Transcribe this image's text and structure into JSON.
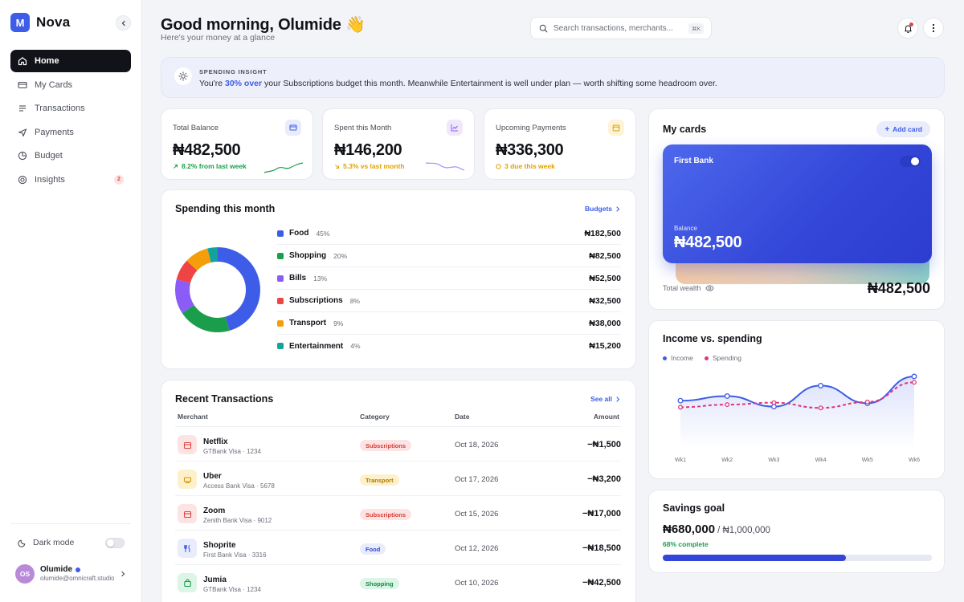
{
  "app": {
    "name": "Nova",
    "logo_letter": "M"
  },
  "nav": [
    {
      "label": "Home",
      "icon": "home-icon",
      "active": true
    },
    {
      "label": "My Cards",
      "icon": "card-icon"
    },
    {
      "label": "Transactions",
      "icon": "list-icon"
    },
    {
      "label": "Payments",
      "icon": "send-icon"
    },
    {
      "label": "Budget",
      "icon": "pie-icon"
    },
    {
      "label": "Insights",
      "icon": "target-icon",
      "badge": "2"
    }
  ],
  "sidebar": {
    "dark_mode_label": "Dark mode"
  },
  "user": {
    "initials": "OS",
    "name": "Olumide",
    "email": "olumide@omnicraft.studio"
  },
  "header": {
    "greeting": "Good morning, Olumide 👋",
    "subtitle": "Here's your money at a glance",
    "search_placeholder": "Search transactions, merchants...",
    "search_shortcut": "⌘K"
  },
  "insight": {
    "tag": "SPENDING INSIGHT",
    "text_before": "You're ",
    "highlight": "30% over",
    "text_after": " your Subscriptions budget this month. Meanwhile Entertainment is well under plan — worth shifting some headroom over."
  },
  "stats": [
    {
      "label": "Total Balance",
      "value": "₦482,500",
      "delta": "8.2% from last week",
      "color": "#1a9e4b",
      "icon": "wallet-icon",
      "icon_bg": "#e8ecfb",
      "icon_color": "#3d5ce8"
    },
    {
      "label": "Spent this Month",
      "value": "₦146,200",
      "delta": "5.3% vs last month",
      "color": "#e0a100",
      "icon": "trend-icon",
      "icon_bg": "#efe8fb",
      "icon_color": "#8b5cf6"
    },
    {
      "label": "Upcoming Payments",
      "value": "₦336,300",
      "delta": "3 due this week",
      "color": "#e0a100",
      "icon": "calendar-icon",
      "icon_bg": "#fdf3d6",
      "icon_color": "#e0a100"
    }
  ],
  "spending": {
    "title": "Spending this month",
    "link": "Budgets",
    "categories": [
      {
        "name": "Food",
        "pct": "45%",
        "amount": "₦182,500",
        "share": 45,
        "color": "#3d5ce8"
      },
      {
        "name": "Shopping",
        "pct": "20%",
        "amount": "₦82,500",
        "share": 20,
        "color": "#1a9e4b"
      },
      {
        "name": "Bills",
        "pct": "13%",
        "amount": "₦52,500",
        "share": 13,
        "color": "#8b5cf6"
      },
      {
        "name": "Subscriptions",
        "pct": "8%",
        "amount": "₦32,500",
        "share": 8,
        "color": "#ef4444"
      },
      {
        "name": "Transport",
        "pct": "9%",
        "amount": "₦38,000",
        "share": 9,
        "color": "#f59e0b"
      },
      {
        "name": "Entertainment",
        "pct": "4%",
        "amount": "₦15,200",
        "share": 4,
        "color": "#14a39a"
      }
    ]
  },
  "transactions": {
    "title": "Recent Transactions",
    "link": "See all",
    "headers": {
      "merchant": "Merchant",
      "category": "Category",
      "date": "Date",
      "amount": "Amount"
    },
    "rows": [
      {
        "merchant": "Netflix",
        "card": "GTBank Visa · 1234",
        "category": "Subscriptions",
        "date": "Oct 18, 2026",
        "amount": "−₦1,500",
        "icon": "calendar-icon",
        "icon_bg": "#fde4e4",
        "icon_color": "#e0453e",
        "pill_bg": "#fde4e4",
        "pill_color": "#d83c36"
      },
      {
        "merchant": "Uber",
        "card": "Access Bank Visa · 5678",
        "category": "Transport",
        "date": "Oct 17, 2026",
        "amount": "−₦3,200",
        "icon": "car-icon",
        "icon_bg": "#fdf1cc",
        "icon_color": "#d49300",
        "pill_bg": "#fdf1cc",
        "pill_color": "#b07a00"
      },
      {
        "merchant": "Zoom",
        "card": "Zenith Bank Visa · 9012",
        "category": "Subscriptions",
        "date": "Oct 15, 2026",
        "amount": "−₦17,000",
        "icon": "calendar-icon",
        "icon_bg": "#fde4e4",
        "icon_color": "#e0453e",
        "pill_bg": "#fde4e4",
        "pill_color": "#d83c36"
      },
      {
        "merchant": "Shoprite",
        "card": "First Bank Visa · 3316",
        "category": "Food",
        "date": "Oct 12, 2026",
        "amount": "−₦18,500",
        "icon": "fork-icon",
        "icon_bg": "#e8ecfb",
        "icon_color": "#3d5ce8",
        "pill_bg": "#e8ecfb",
        "pill_color": "#3346d8"
      },
      {
        "merchant": "Jumia",
        "card": "GTBank Visa · 1234",
        "category": "Shopping",
        "date": "Oct 10, 2026",
        "amount": "−₦42,500",
        "icon": "bag-icon",
        "icon_bg": "#dcf5e6",
        "icon_color": "#1a9e4b",
        "pill_bg": "#dcf5e6",
        "pill_color": "#178a42"
      }
    ]
  },
  "my_cards": {
    "title": "My cards",
    "add_label": "Add card",
    "card_name": "First Bank",
    "balance_label": "Balance",
    "balance": "₦482,500",
    "total_wealth_label": "Total wealth",
    "total_wealth": "₦482,500"
  },
  "chart_data": {
    "type": "line",
    "title": "Income vs. spending",
    "x": [
      "Wk1",
      "Wk2",
      "Wk3",
      "Wk4",
      "Wk5",
      "Wk6"
    ],
    "series": [
      {
        "name": "Income",
        "color": "#3d5ce8",
        "values": [
          72,
          79,
          63,
          95,
          68,
          109
        ]
      },
      {
        "name": "Spending",
        "color": "#e0357a",
        "values": [
          62,
          66,
          69,
          61,
          70,
          100
        ]
      }
    ],
    "ylim": [
      0,
      120
    ],
    "legend": "top-left",
    "grid": false
  },
  "savings": {
    "title": "Savings goal",
    "current": "₦680,000",
    "target": "/ ₦1,000,000",
    "pct_label": "68% complete",
    "progress": 0.68
  }
}
